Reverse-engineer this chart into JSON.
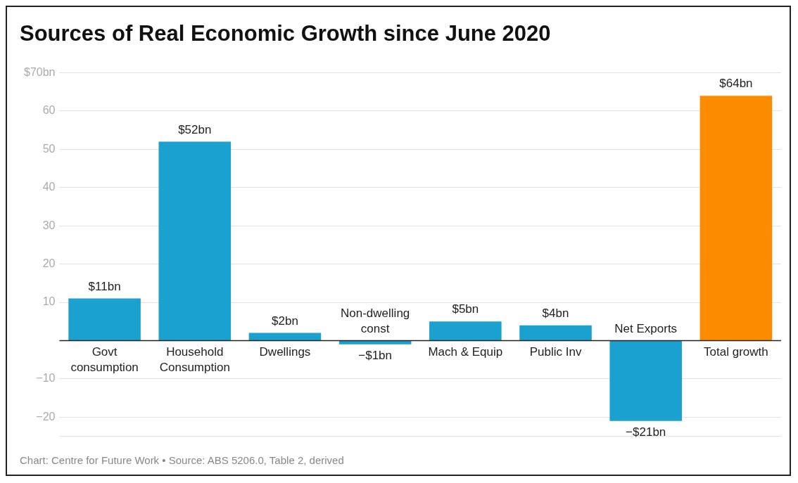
{
  "chart_data": {
    "type": "bar",
    "title": "Sources of Real Economic Growth since June 2020",
    "categories": [
      "Govt consumption",
      "Household Consumption",
      "Dwellings",
      "Non-dwelling const",
      "Mach & Equip",
      "Public Inv",
      "Net Exports",
      "Total growth"
    ],
    "values": [
      11,
      52,
      2,
      -1,
      5,
      4,
      -21,
      64
    ],
    "colors": [
      "#1ba1d0",
      "#1ba1d0",
      "#1ba1d0",
      "#1ba1d0",
      "#1ba1d0",
      "#1ba1d0",
      "#1ba1d0",
      "#fb8c00"
    ],
    "value_labels": [
      "$11bn",
      "$52bn",
      "$2bn",
      "−$1bn",
      "$5bn",
      "$4bn",
      "−$21bn",
      "$64bn"
    ],
    "ylim": [
      -25,
      70
    ],
    "yticks": [
      {
        "value": -25,
        "label": null
      },
      {
        "value": -20,
        "label": "−20"
      },
      {
        "value": -10,
        "label": "−10"
      },
      {
        "value": 0,
        "label": null
      },
      10,
      20,
      30,
      40,
      50,
      60,
      {
        "value": 70,
        "label": "$70bn"
      }
    ],
    "grid": "y",
    "annotations": [
      "Chart: Centre for Future Work • Source: ABS 5206.0, Table 2, derived"
    ]
  }
}
